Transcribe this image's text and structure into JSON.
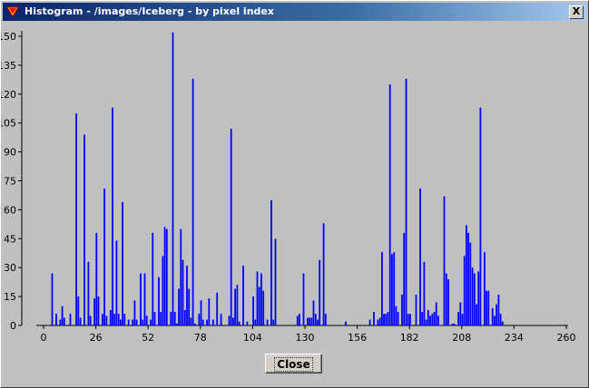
{
  "window": {
    "title": "Histogram - /images/Iceberg - by pixel index",
    "close_glyph": "X"
  },
  "button": {
    "close_label": "Close"
  },
  "colors": {
    "bar": "#0000ff",
    "background": "#c0c0c0",
    "titlebar": "#0a246a"
  },
  "chart_data": {
    "type": "bar",
    "xlabel": "",
    "ylabel": "",
    "xlim": [
      0,
      260
    ],
    "ylim": [
      0,
      150
    ],
    "x_ticks": [
      0,
      26,
      52,
      78,
      104,
      130,
      156,
      182,
      208,
      234,
      260
    ],
    "y_ticks": [
      0,
      15,
      30,
      45,
      60,
      75,
      90,
      105,
      120,
      135,
      150
    ],
    "bars": [
      [
        3,
        27
      ],
      [
        5,
        6
      ],
      [
        7,
        3
      ],
      [
        8,
        10
      ],
      [
        9,
        4
      ],
      [
        12,
        6
      ],
      [
        15,
        110
      ],
      [
        16,
        15
      ],
      [
        17,
        4
      ],
      [
        19,
        99
      ],
      [
        21,
        33
      ],
      [
        22,
        5
      ],
      [
        24,
        14
      ],
      [
        25,
        48
      ],
      [
        26,
        15
      ],
      [
        28,
        6
      ],
      [
        29,
        71
      ],
      [
        30,
        5
      ],
      [
        32,
        8
      ],
      [
        33,
        113
      ],
      [
        34,
        6
      ],
      [
        35,
        44
      ],
      [
        36,
        6
      ],
      [
        37,
        3
      ],
      [
        38,
        64
      ],
      [
        39,
        6
      ],
      [
        41,
        3
      ],
      [
        43,
        3
      ],
      [
        44,
        13
      ],
      [
        45,
        3
      ],
      [
        47,
        27
      ],
      [
        48,
        3
      ],
      [
        49,
        27
      ],
      [
        50,
        5
      ],
      [
        52,
        3
      ],
      [
        53,
        48
      ],
      [
        54,
        7
      ],
      [
        56,
        25
      ],
      [
        57,
        7
      ],
      [
        58,
        36
      ],
      [
        59,
        51
      ],
      [
        60,
        50
      ],
      [
        62,
        7
      ],
      [
        63,
        152
      ],
      [
        64,
        7
      ],
      [
        65,
        1
      ],
      [
        66,
        19
      ],
      [
        67,
        50
      ],
      [
        68,
        34
      ],
      [
        69,
        8
      ],
      [
        70,
        31
      ],
      [
        71,
        19
      ],
      [
        72,
        4
      ],
      [
        73,
        128
      ],
      [
        74,
        1
      ],
      [
        76,
        6
      ],
      [
        77,
        13
      ],
      [
        78,
        3
      ],
      [
        80,
        3
      ],
      [
        81,
        14
      ],
      [
        83,
        3
      ],
      [
        85,
        17
      ],
      [
        87,
        6
      ],
      [
        91,
        5
      ],
      [
        92,
        102
      ],
      [
        93,
        4
      ],
      [
        94,
        19
      ],
      [
        95,
        21
      ],
      [
        96,
        2
      ],
      [
        98,
        31
      ],
      [
        100,
        2
      ],
      [
        103,
        15
      ],
      [
        104,
        3
      ],
      [
        105,
        28
      ],
      [
        106,
        20
      ],
      [
        107,
        27
      ],
      [
        108,
        18
      ],
      [
        110,
        3
      ],
      [
        112,
        65
      ],
      [
        113,
        3
      ],
      [
        114,
        45
      ],
      [
        125,
        5
      ],
      [
        126,
        6
      ],
      [
        128,
        27
      ],
      [
        130,
        4
      ],
      [
        131,
        4
      ],
      [
        132,
        4
      ],
      [
        133,
        13
      ],
      [
        134,
        6
      ],
      [
        135,
        3
      ],
      [
        136,
        34
      ],
      [
        138,
        53
      ],
      [
        139,
        6
      ],
      [
        149,
        2
      ],
      [
        161,
        3
      ],
      [
        163,
        7
      ],
      [
        165,
        3
      ],
      [
        166,
        4
      ],
      [
        167,
        38
      ],
      [
        168,
        6
      ],
      [
        169,
        6
      ],
      [
        170,
        7
      ],
      [
        171,
        125
      ],
      [
        172,
        37
      ],
      [
        173,
        38
      ],
      [
        174,
        10
      ],
      [
        175,
        7
      ],
      [
        177,
        16
      ],
      [
        178,
        48
      ],
      [
        179,
        128
      ],
      [
        180,
        6
      ],
      [
        181,
        6
      ],
      [
        184,
        16
      ],
      [
        186,
        71
      ],
      [
        187,
        7
      ],
      [
        188,
        33
      ],
      [
        189,
        3
      ],
      [
        190,
        8
      ],
      [
        191,
        5
      ],
      [
        192,
        6
      ],
      [
        193,
        7
      ],
      [
        194,
        12
      ],
      [
        195,
        5
      ],
      [
        198,
        67
      ],
      [
        199,
        27
      ],
      [
        200,
        24
      ],
      [
        202,
        1
      ],
      [
        203,
        1
      ],
      [
        205,
        7
      ],
      [
        206,
        12
      ],
      [
        207,
        6
      ],
      [
        208,
        36
      ],
      [
        209,
        52
      ],
      [
        210,
        48
      ],
      [
        211,
        43
      ],
      [
        212,
        30
      ],
      [
        213,
        27
      ],
      [
        214,
        11
      ],
      [
        215,
        28
      ],
      [
        216,
        113
      ],
      [
        218,
        38
      ],
      [
        219,
        18
      ],
      [
        220,
        18
      ],
      [
        222,
        9
      ],
      [
        223,
        5
      ],
      [
        224,
        11
      ],
      [
        225,
        16
      ],
      [
        226,
        6
      ],
      [
        227,
        2
      ]
    ]
  }
}
